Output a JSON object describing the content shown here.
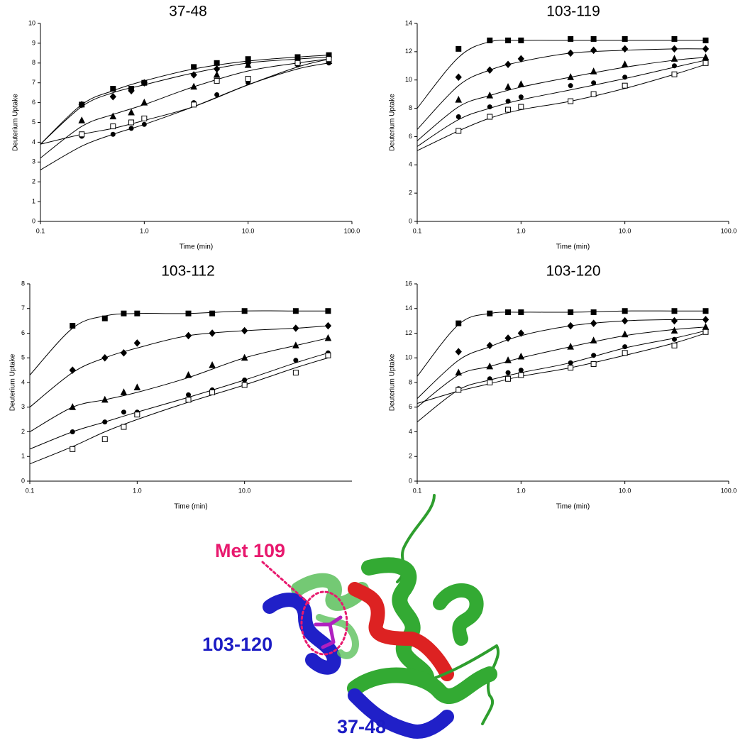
{
  "chart_data": [
    {
      "type": "scatter",
      "title": "37-48",
      "xlabel": "Time (min)",
      "ylabel": "Deuterium Uptake",
      "log_x": true,
      "xlim": [
        0.1,
        100
      ],
      "xticks": [
        0.1,
        {
          "value": 1,
          "label": "1.0"
        },
        {
          "value": 10,
          "label": "10.0"
        },
        {
          "value": 100,
          "label": "100.0"
        }
      ],
      "ylim": [
        0,
        10
      ],
      "yticks": [
        0,
        1,
        2,
        3,
        4,
        5,
        6,
        7,
        8,
        9,
        10
      ],
      "x": [
        0.25,
        0.5,
        0.75,
        1,
        3,
        5,
        10,
        30,
        60
      ],
      "fit_x": [
        0.1,
        0.25,
        0.5,
        1,
        3,
        10,
        30,
        60
      ],
      "series": [
        {
          "marker": "square",
          "color": "#000000",
          "values": [
            5.9,
            6.7,
            6.7,
            7.0,
            7.8,
            8.0,
            8.2,
            8.3,
            8.4
          ],
          "fit": [
            3.9,
            5.9,
            6.6,
            7.1,
            7.7,
            8.1,
            8.3,
            8.4
          ]
        },
        {
          "marker": "diamond",
          "color": "#000000",
          "values": [
            5.9,
            6.3,
            6.6,
            7.0,
            7.4,
            7.7,
            8.0,
            8.2,
            8.3
          ],
          "fit": [
            3.9,
            5.8,
            6.5,
            6.9,
            7.5,
            8.0,
            8.2,
            8.3
          ]
        },
        {
          "marker": "triangle",
          "color": "#000000",
          "values": [
            5.1,
            5.3,
            5.5,
            6.0,
            6.8,
            7.4,
            7.9,
            8.1,
            8.1
          ],
          "fit": [
            3.2,
            4.8,
            5.4,
            5.9,
            6.8,
            7.6,
            8.0,
            8.2
          ]
        },
        {
          "marker": "circle",
          "color": "#000000",
          "values": [
            4.3,
            4.4,
            4.7,
            4.9,
            6.0,
            6.4,
            7.0,
            7.9,
            8.0
          ],
          "fit": [
            2.6,
            3.8,
            4.4,
            4.9,
            5.8,
            6.9,
            7.7,
            8.0
          ]
        },
        {
          "marker": "square-open",
          "color": "#000000",
          "values": [
            4.4,
            4.8,
            5.0,
            5.2,
            5.9,
            7.1,
            7.2,
            8.0,
            8.2
          ],
          "fit": [
            3.9,
            4.4,
            4.7,
            5.1,
            5.8,
            6.9,
            7.8,
            8.2
          ]
        }
      ]
    },
    {
      "type": "scatter",
      "title": "103-119",
      "xlabel": "Time (min)",
      "ylabel": "Deuterium Uptake",
      "log_x": true,
      "xlim": [
        0.1,
        100
      ],
      "xticks": [
        0.1,
        {
          "value": 1,
          "label": "1.0"
        },
        {
          "value": 10,
          "label": "10.0"
        },
        {
          "value": 100,
          "label": "100.0"
        }
      ],
      "ylim": [
        0,
        14
      ],
      "yticks": [
        0,
        2,
        4,
        6,
        8,
        10,
        12,
        14
      ],
      "x": [
        0.25,
        0.5,
        0.75,
        1,
        3,
        5,
        10,
        30,
        60
      ],
      "fit_x": [
        0.1,
        0.25,
        0.5,
        1,
        3,
        10,
        30,
        60
      ],
      "series": [
        {
          "marker": "square",
          "color": "#000000",
          "values": [
            12.2,
            12.8,
            12.8,
            12.8,
            12.9,
            12.9,
            12.9,
            12.9,
            12.8
          ],
          "fit": [
            8.0,
            11.6,
            12.7,
            12.8,
            12.8,
            12.8,
            12.8,
            12.8
          ]
        },
        {
          "marker": "diamond",
          "color": "#000000",
          "values": [
            10.2,
            10.7,
            11.1,
            11.5,
            11.9,
            12.1,
            12.2,
            12.2,
            12.2
          ],
          "fit": [
            6.5,
            9.6,
            10.7,
            11.3,
            11.9,
            12.1,
            12.2,
            12.2
          ]
        },
        {
          "marker": "triangle",
          "color": "#000000",
          "values": [
            8.6,
            8.9,
            9.5,
            9.7,
            10.2,
            10.6,
            11.1,
            11.5,
            11.6
          ],
          "fit": [
            5.7,
            8.1,
            8.9,
            9.5,
            10.2,
            10.9,
            11.4,
            11.6
          ]
        },
        {
          "marker": "circle",
          "color": "#000000",
          "values": [
            7.4,
            8.1,
            8.5,
            8.8,
            9.6,
            9.8,
            10.2,
            11.0,
            11.5
          ],
          "fit": [
            5.3,
            7.2,
            8.0,
            8.6,
            9.3,
            10.1,
            10.9,
            11.4
          ]
        },
        {
          "marker": "square-open",
          "color": "#000000",
          "values": [
            6.4,
            7.4,
            7.9,
            8.1,
            8.5,
            9.0,
            9.6,
            10.4,
            11.2
          ],
          "fit": [
            5.0,
            6.4,
            7.3,
            7.9,
            8.5,
            9.4,
            10.4,
            11.1
          ]
        }
      ]
    },
    {
      "type": "scatter",
      "title": "103-112",
      "xlabel": "Time (min)",
      "ylabel": "Deuterium Uptake",
      "log_x": true,
      "xlim": [
        0.1,
        100
      ],
      "xticks": [
        0.1,
        {
          "value": 1,
          "label": "1.0"
        },
        {
          "value": 10,
          "label": "10.0"
        }
      ],
      "ylim": [
        0,
        8
      ],
      "yticks": [
        0,
        1,
        2,
        3,
        4,
        5,
        6,
        7,
        8
      ],
      "x": [
        0.25,
        0.5,
        0.75,
        1,
        3,
        5,
        10,
        30,
        60
      ],
      "fit_x": [
        0.1,
        0.25,
        0.5,
        1,
        3,
        10,
        30,
        60
      ],
      "series": [
        {
          "marker": "square",
          "color": "#000000",
          "values": [
            6.3,
            6.6,
            6.8,
            6.8,
            6.8,
            6.8,
            6.9,
            6.9,
            6.9
          ],
          "fit": [
            4.3,
            6.2,
            6.7,
            6.8,
            6.8,
            6.9,
            6.9,
            6.9
          ]
        },
        {
          "marker": "diamond",
          "color": "#000000",
          "values": [
            4.5,
            5.0,
            5.2,
            5.6,
            5.9,
            6.0,
            6.1,
            6.2,
            6.3
          ],
          "fit": [
            3.0,
            4.4,
            5.0,
            5.4,
            5.9,
            6.1,
            6.2,
            6.3
          ]
        },
        {
          "marker": "triangle",
          "color": "#000000",
          "values": [
            3.0,
            3.3,
            3.6,
            3.8,
            4.3,
            4.7,
            5.0,
            5.5,
            5.8
          ],
          "fit": [
            2.0,
            3.0,
            3.3,
            3.6,
            4.2,
            5.0,
            5.5,
            5.8
          ]
        },
        {
          "marker": "circle",
          "color": "#000000",
          "values": [
            2.0,
            2.4,
            2.8,
            2.8,
            3.5,
            3.7,
            4.1,
            4.9,
            5.2
          ],
          "fit": [
            1.3,
            2.0,
            2.4,
            2.8,
            3.4,
            4.1,
            4.8,
            5.2
          ]
        },
        {
          "marker": "square-open",
          "color": "#000000",
          "values": [
            1.3,
            1.7,
            2.2,
            2.7,
            3.3,
            3.6,
            3.9,
            4.4,
            5.1
          ],
          "fit": [
            0.7,
            1.4,
            2.0,
            2.5,
            3.2,
            3.9,
            4.6,
            5.0
          ]
        }
      ]
    },
    {
      "type": "scatter",
      "title": "103-120",
      "xlabel": "Time (min)",
      "ylabel": "Deuterium Uptake",
      "log_x": true,
      "xlim": [
        0.1,
        100
      ],
      "xticks": [
        0.1,
        {
          "value": 1,
          "label": "1.0"
        },
        {
          "value": 10,
          "label": "10.0"
        },
        {
          "value": 100,
          "label": "100.0"
        }
      ],
      "ylim": [
        0,
        16
      ],
      "yticks": [
        0,
        2,
        4,
        6,
        8,
        10,
        12,
        14,
        16
      ],
      "x": [
        0.25,
        0.5,
        0.75,
        1,
        3,
        5,
        10,
        30,
        60
      ],
      "fit_x": [
        0.1,
        0.25,
        0.5,
        1,
        3,
        10,
        30,
        60
      ],
      "series": [
        {
          "marker": "square",
          "color": "#000000",
          "values": [
            12.8,
            13.6,
            13.7,
            13.7,
            13.7,
            13.7,
            13.8,
            13.8,
            13.8
          ],
          "fit": [
            8.5,
            12.7,
            13.6,
            13.7,
            13.7,
            13.8,
            13.8,
            13.8
          ]
        },
        {
          "marker": "diamond",
          "color": "#000000",
          "values": [
            10.5,
            11.0,
            11.6,
            12.0,
            12.6,
            12.8,
            13.0,
            13.0,
            13.1
          ],
          "fit": [
            6.7,
            9.8,
            10.9,
            11.8,
            12.6,
            13.0,
            13.1,
            13.1
          ]
        },
        {
          "marker": "triangle",
          "color": "#000000",
          "values": [
            8.8,
            9.3,
            9.8,
            10.1,
            10.9,
            11.4,
            11.9,
            12.2,
            12.5
          ],
          "fit": [
            6.0,
            8.6,
            9.3,
            10.0,
            10.9,
            11.8,
            12.3,
            12.5
          ]
        },
        {
          "marker": "circle",
          "color": "#000000",
          "values": [
            7.5,
            8.3,
            8.8,
            9.0,
            9.6,
            10.2,
            10.9,
            11.5,
            12.3
          ],
          "fit": [
            4.8,
            7.4,
            8.2,
            8.8,
            9.6,
            10.8,
            11.6,
            12.2
          ]
        },
        {
          "marker": "square-open",
          "color": "#000000",
          "values": [
            7.4,
            8.0,
            8.3,
            8.6,
            9.2,
            9.5,
            10.4,
            11.0,
            12.1
          ],
          "fit": [
            6.3,
            7.3,
            7.9,
            8.5,
            9.2,
            10.2,
            11.2,
            12.0
          ]
        }
      ]
    }
  ],
  "structure": {
    "labels": [
      {
        "text": "Met 109",
        "color": "#e8196e"
      },
      {
        "text": "103-120",
        "color": "#1c1cc4"
      },
      {
        "text": "37-48",
        "color": "#1c1cc4"
      }
    ]
  }
}
